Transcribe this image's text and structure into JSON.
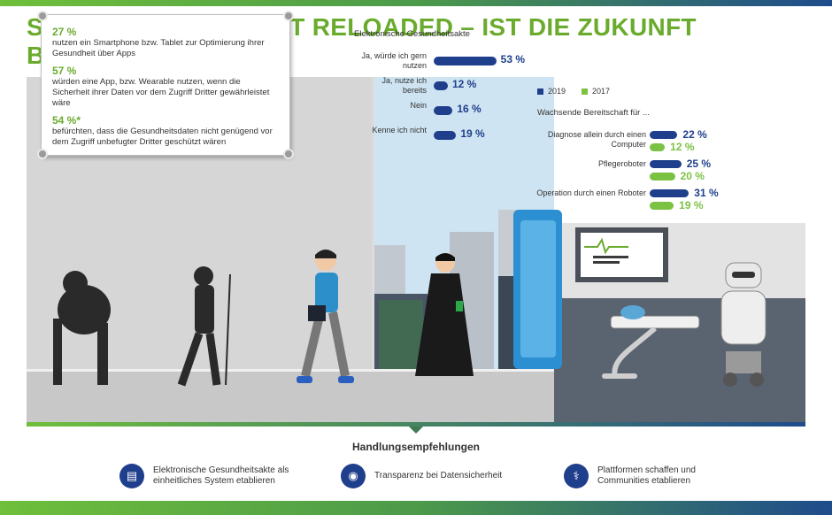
{
  "title": {
    "main": "SMARTE GESUNDHEIT RELOADED",
    "sep": " – ",
    "sub": "IST DIE ZUKUNFT BEREITS DA?"
  },
  "note": {
    "items": [
      {
        "pct": "27 %",
        "text": "nutzen ein Smartphone bzw. Tablet zur Optimierung ihrer Gesundheit über Apps"
      },
      {
        "pct": "57 %",
        "text": "würden eine App, bzw. Wearable nutzen, wenn die Sicherheit ihrer Daten vor dem Zugriff Dritter gewährleistet wäre"
      },
      {
        "pct": "54 %*",
        "text": "befürchten, dass die Gesundheitsdaten nicht genügend vor dem Zugriff unbefugter Dritter geschützt wären"
      }
    ]
  },
  "chart_data": [
    {
      "type": "bar",
      "title": "Elektronische Gesundheitsakte",
      "categories": [
        "Ja, würde ich gern nutzen",
        "Ja, nutze ich bereits",
        "Nein",
        "Kenne ich nicht"
      ],
      "values": [
        53,
        12,
        16,
        19
      ],
      "value_labels": [
        "53 %",
        "12 %",
        "16 %",
        "19 %"
      ],
      "color": "#1f3f8c"
    },
    {
      "type": "bar",
      "title": "Wachsende Bereitschaft für ...",
      "categories": [
        "Diagnose allein durch einen Computer",
        "Pflegeroboter",
        "Operation durch einen Roboter"
      ],
      "series": [
        {
          "name": "2019",
          "values": [
            22,
            25,
            31
          ],
          "labels": [
            "22 %",
            "25 %",
            "31 %"
          ],
          "color": "#1f3f8c"
        },
        {
          "name": "2017",
          "values": [
            12,
            20,
            19
          ],
          "labels": [
            "12 %",
            "20 %",
            "19 %"
          ],
          "color": "#7cc242"
        }
      ],
      "legend": "top-left"
    }
  ],
  "recommendations": {
    "title": "Handlungsempfehlungen",
    "items": [
      {
        "icon": "document-icon",
        "text": "Elektronische Gesundheitsakte als einheitliches System etablieren"
      },
      {
        "icon": "eye-icon",
        "text": "Transparenz bei Datensicherheit"
      },
      {
        "icon": "caduceus-icon",
        "text": "Plattformen schaffen und Communities etablieren"
      }
    ]
  }
}
